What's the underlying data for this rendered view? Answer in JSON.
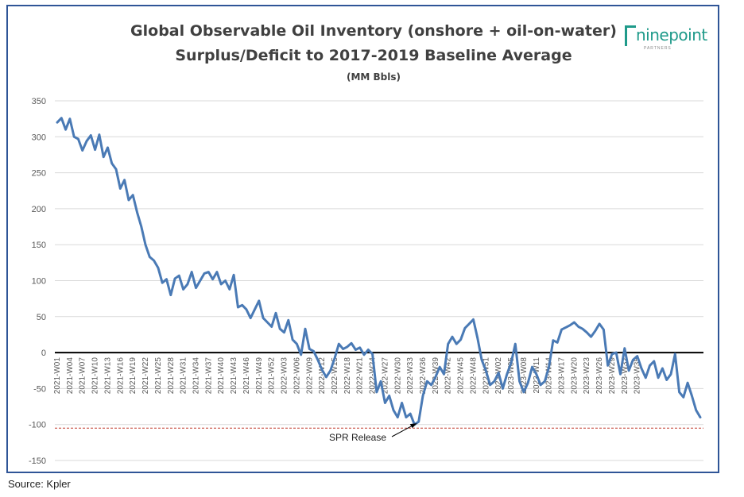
{
  "chart_data": {
    "type": "line",
    "title": "Global Observable Oil Inventory (onshore + oil-on-water)",
    "subtitle": "Surplus/Deficit to 2017-2019 Baseline Average",
    "ylabel": "(MM Bbls)",
    "ylim": [
      -150,
      350
    ],
    "yticks": [
      -150,
      -100,
      -50,
      0,
      50,
      100,
      150,
      200,
      250,
      300,
      350
    ],
    "xtick_labels": [
      "2021-W01",
      "2021-W04",
      "2021-W07",
      "2021-W10",
      "2021-W13",
      "2021-W16",
      "2021-W19",
      "2021-W22",
      "2021-W25",
      "2021-W28",
      "2021-W31",
      "2021-W34",
      "2021-W37",
      "2021-W40",
      "2021-W43",
      "2021-W46",
      "2021-W49",
      "2021-W52",
      "2022-W03",
      "2022-W06",
      "2022-W09",
      "2022-W12",
      "2022-W15",
      "2022-W18",
      "2022-W21",
      "2022-W24",
      "2022-W27",
      "2022-W30",
      "2022-W33",
      "2022-W36",
      "2022-W39",
      "2022-W42",
      "2022-W45",
      "2022-W48",
      "2022-W51",
      "2023-W02",
      "2023-W05",
      "2023-W08",
      "2023-W11",
      "2023-W14",
      "2023-W17",
      "2023-W20",
      "2023-W23",
      "2023-W26",
      "2023-W29",
      "2023-W32",
      "2023-W35"
    ],
    "grid": true,
    "zero_line": true,
    "series": [
      {
        "color": "#4a7ab5",
        "values": [
          320,
          326,
          310,
          325,
          300,
          297,
          281,
          294,
          302,
          282,
          303,
          272,
          285,
          263,
          255,
          228,
          240,
          212,
          219,
          195,
          175,
          150,
          133,
          128,
          118,
          97,
          102,
          80,
          103,
          107,
          88,
          95,
          112,
          90,
          100,
          110,
          112,
          102,
          112,
          95,
          100,
          88,
          108,
          63,
          66,
          60,
          48,
          60,
          72,
          48,
          42,
          36,
          55,
          33,
          28,
          45,
          18,
          12,
          -3,
          33,
          5,
          2,
          -10,
          -24,
          -34,
          -25,
          -8,
          12,
          5,
          8,
          13,
          4,
          7,
          -3,
          4,
          -2,
          -55,
          -40,
          -70,
          -60,
          -80,
          -90,
          -70,
          -90,
          -85,
          -100,
          -96,
          -60,
          -40,
          -45,
          -34,
          -20,
          -30,
          12,
          22,
          12,
          18,
          34,
          40,
          46,
          20,
          -10,
          -25,
          -45,
          -40,
          -28,
          -50,
          -30,
          -14,
          12,
          -40,
          -55,
          -42,
          -20,
          -30,
          -45,
          -40,
          -20,
          17,
          14,
          32,
          35,
          38,
          42,
          36,
          33,
          28,
          22,
          30,
          40,
          32,
          -18,
          -2,
          0,
          -30,
          6,
          -25,
          -10,
          -5,
          -22,
          -35,
          -18,
          -12,
          -35,
          -22,
          -38,
          -30,
          -2,
          -55,
          -62,
          -42,
          -60,
          -80,
          -90
        ]
      }
    ],
    "reference_line": {
      "value": -105,
      "color": "#c0392b"
    },
    "annotations": [
      {
        "text": "SPR Release",
        "x_index": 86
      }
    ]
  },
  "logo": {
    "text": "ninepoint",
    "tagline": "PARTNERS"
  },
  "source": "Source: Kpler"
}
